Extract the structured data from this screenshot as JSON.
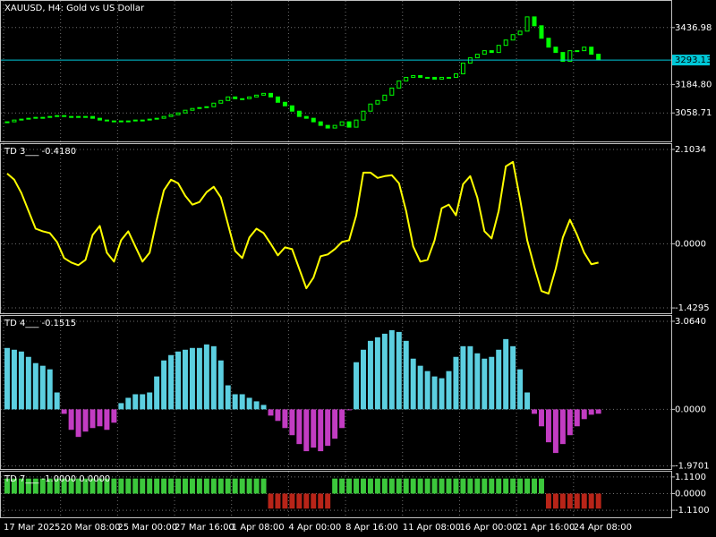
{
  "chart_data": [
    {
      "type": "candlestick",
      "title": "XAUUSD, H4:  Gold vs US Dollar",
      "color": "#00ff00",
      "close": [
        3019.4,
        3027.2,
        3031.2,
        3035.1,
        3039.1,
        3039.1,
        3043,
        3046.9,
        3043,
        3043,
        3039.1,
        3043,
        3035.1,
        3027.2,
        3023.3,
        3019.4,
        3023.3,
        3023.3,
        3027.2,
        3027.2,
        3031.2,
        3035.1,
        3043,
        3050.9,
        3058.8,
        3070.6,
        3078.5,
        3082.4,
        3086.3,
        3102.1,
        3113.9,
        3129.7,
        3121.8,
        3121.8,
        3129.7,
        3137.6,
        3145.4,
        3129.7,
        3106,
        3090.3,
        3066.6,
        3043,
        3035.1,
        3019.4,
        3003.6,
        2991.8,
        3003.6,
        3019.4,
        2995.7,
        3027.2,
        3066.6,
        3098.2,
        3113.9,
        3137.6,
        3169.1,
        3200.6,
        3216.4,
        3224.2,
        3216.4,
        3216.4,
        3208.5,
        3216.4,
        3216.4,
        3232.1,
        3279.4,
        3303,
        3318.8,
        3334.6,
        3326.7,
        3358.2,
        3381.8,
        3405.5,
        3421.2,
        3484.3,
        3444.9,
        3389.7,
        3350.3,
        3326.7,
        3287.3,
        3334.6,
        3334.6,
        3350.3,
        3318.8,
        3293.13
      ],
      "last_price": 3293.13,
      "last_price_color": "#00c8d8",
      "ylim": [
        2932.6,
        3555.2
      ],
      "yticks": [
        3058.71,
        {
          "value": 3184.8,
          "label": "3184.80"
        },
        3436.98
      ],
      "grid": true
    },
    {
      "type": "line",
      "title": "TD 3___  -0.4180",
      "color": "#ffff00",
      "values": [
        1.567,
        1.428,
        1.131,
        0.734,
        0.337,
        0.278,
        0.238,
        0.04,
        -0.317,
        -0.417,
        -0.476,
        -0.357,
        0.198,
        0.397,
        -0.198,
        -0.397,
        0.079,
        0.278,
        -0.06,
        -0.397,
        -0.198,
        0.536,
        1.19,
        1.428,
        1.349,
        1.071,
        0.873,
        0.932,
        1.151,
        1.27,
        1.032,
        0.436,
        -0.159,
        -0.317,
        0.139,
        0.337,
        0.238,
        0,
        -0.258,
        -0.079,
        -0.119,
        -0.556,
        -0.992,
        -0.754,
        -0.278,
        -0.238,
        -0.119,
        0.04,
        0.079,
        0.635,
        1.587,
        1.587,
        1.468,
        1.508,
        1.528,
        1.349,
        0.734,
        -0.06,
        -0.397,
        -0.357,
        0.079,
        0.794,
        0.873,
        0.635,
        1.329,
        1.508,
        1.032,
        0.278,
        0.119,
        0.734,
        1.726,
        1.825,
        0.992,
        0.079,
        -0.516,
        -1.052,
        -1.111,
        -0.556,
        0.139,
        0.536,
        0.198,
        -0.198,
        -0.456,
        -0.418
      ],
      "ylim": [
        -1.548,
        2.222
      ],
      "yticks": [
        -1.4295,
        {
          "value": 0,
          "label": "0.0000"
        },
        2.1034
      ],
      "grid": true
    },
    {
      "type": "bar",
      "title": "TD 4___  -0.1515",
      "up_color": "#5ccfe0",
      "down_color": "#c23cc2",
      "values": [
        2.136,
        2.074,
        2.012,
        1.826,
        1.609,
        1.517,
        1.393,
        0.588,
        -0.155,
        -0.712,
        -0.959,
        -0.774,
        -0.65,
        -0.588,
        -0.712,
        -0.464,
        0.217,
        0.402,
        0.526,
        0.526,
        0.588,
        1.145,
        1.702,
        1.888,
        2.012,
        2.074,
        2.136,
        2.136,
        2.259,
        2.197,
        1.702,
        0.836,
        0.526,
        0.526,
        0.402,
        0.279,
        0.155,
        -0.217,
        -0.402,
        -0.65,
        -0.898,
        -1.207,
        -1.455,
        -1.331,
        -1.455,
        -1.269,
        -1.021,
        -0.65,
        -0.031,
        1.64,
        2.074,
        2.383,
        2.507,
        2.631,
        2.755,
        2.693,
        2.383,
        1.764,
        1.517,
        1.331,
        1.145,
        1.083,
        1.331,
        1.826,
        2.197,
        2.197,
        1.95,
        1.764,
        1.826,
        2.074,
        2.445,
        2.197,
        1.393,
        0.588,
        -0.155,
        -0.588,
        -1.145,
        -1.517,
        -1.207,
        -0.898,
        -0.588,
        -0.34,
        -0.186,
        -0.1515
      ],
      "ylim": [
        -2.074,
        3.25
      ],
      "yticks": [
        {
          "value": -1.9701,
          "label": "-1.9701"
        },
        {
          "value": 0,
          "label": "0.0000"
        },
        {
          "value": 3.064,
          "label": "3.0640"
        }
      ],
      "grid": true
    },
    {
      "type": "bar",
      "title": "TD 7___  -1.0000 0.0000",
      "up_color": "#3cc83c",
      "down_color": "#b82418",
      "values": [
        1,
        1,
        1,
        1,
        1,
        1,
        1,
        1,
        1,
        1,
        1,
        1,
        1,
        1,
        1,
        1,
        1,
        1,
        1,
        1,
        1,
        1,
        1,
        1,
        1,
        1,
        1,
        1,
        1,
        1,
        1,
        1,
        1,
        1,
        1,
        1,
        1,
        -1,
        -1,
        -1,
        -1,
        -1,
        -1,
        -1,
        -1,
        -1,
        1,
        1,
        1,
        1,
        1,
        1,
        1,
        1,
        1,
        1,
        1,
        1,
        1,
        1,
        1,
        1,
        1,
        1,
        1,
        1,
        1,
        1,
        1,
        1,
        1,
        1,
        1,
        1,
        1,
        1,
        -1,
        -1,
        -1,
        -1,
        -1,
        -1,
        -1,
        -1
      ],
      "categories": [
        "17 Mar 2025",
        null,
        null,
        null,
        null,
        null,
        null,
        null,
        "20 Mar 08:00",
        null,
        null,
        null,
        null,
        null,
        null,
        null,
        "25 Mar 00:00",
        null,
        null,
        null,
        null,
        null,
        null,
        null,
        "27 Mar 16:00",
        null,
        null,
        null,
        null,
        null,
        null,
        null,
        "1 Apr 08:00",
        null,
        null,
        null,
        null,
        null,
        null,
        null,
        "4 Apr 00:00",
        null,
        null,
        null,
        null,
        null,
        null,
        null,
        "8 Apr 16:00",
        null,
        null,
        null,
        null,
        null,
        null,
        null,
        "11 Apr 08:00",
        null,
        null,
        null,
        null,
        null,
        null,
        null,
        "16 Apr 00:00",
        null,
        null,
        null,
        null,
        null,
        null,
        null,
        "21 Apr 16:00",
        null,
        null,
        null,
        null,
        null,
        null,
        null,
        "24 Apr 08:00",
        null,
        null,
        null
      ],
      "ylim": [
        -1.58,
        1.46
      ],
      "yticks": [
        {
          "value": -1.11,
          "label": "-1.1100"
        },
        {
          "value": 0,
          "label": "0.0000"
        },
        {
          "value": 1.11,
          "label": "1.1100"
        }
      ],
      "grid": true
    }
  ]
}
